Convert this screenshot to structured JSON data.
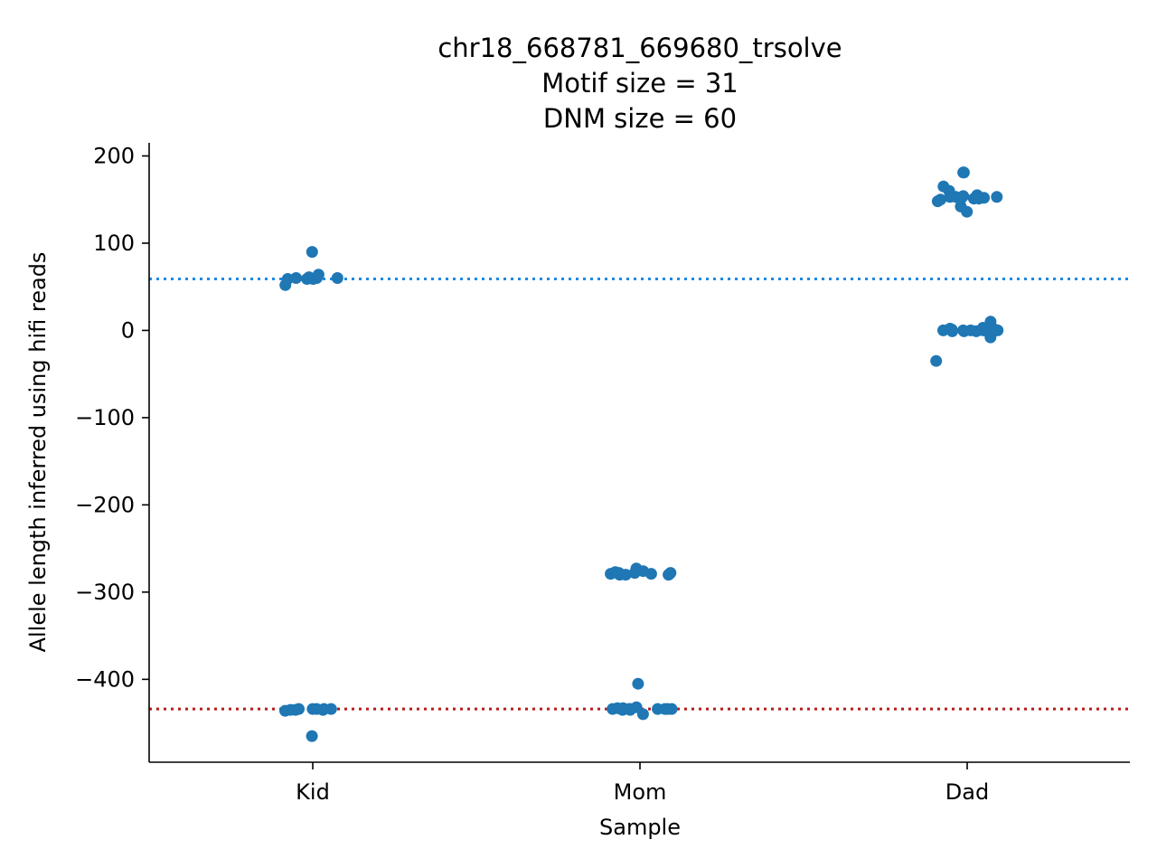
{
  "chart_data": {
    "type": "scatter",
    "title_lines": [
      "chr18_668781_669680_trsolve",
      "Motif size = 31",
      "DNM size = 60"
    ],
    "xlabel": "Sample",
    "ylabel": "Allele length inferred using hifi reads",
    "categories": [
      "Kid",
      "Mom",
      "Dad"
    ],
    "ylim": [
      -495,
      215
    ],
    "yticks": [
      200,
      100,
      0,
      -100,
      -200,
      -300,
      -400
    ],
    "ytick_labels": [
      "200",
      "100",
      "0",
      "−100",
      "−200",
      "−300",
      "−400"
    ],
    "point_color": "#1f77b4",
    "reference_lines": [
      {
        "value": 59,
        "color": "#1e88e5",
        "style": "dotted"
      },
      {
        "value": -434,
        "color": "#b71c1c",
        "style": "dotted"
      }
    ],
    "series": [
      {
        "category": "Kid",
        "values": [
          90,
          60,
          59,
          60,
          61,
          59,
          52,
          60,
          64,
          59,
          -434,
          -434,
          -435,
          -436,
          -434,
          -435,
          -434,
          -435,
          -434,
          -465
        ]
      },
      {
        "category": "Mom",
        "values": [
          -278,
          -279,
          -280,
          -278,
          -277,
          -273,
          -279,
          -280,
          -278,
          -276,
          -279,
          -280,
          -279,
          -434,
          -432,
          -435,
          -440,
          -434,
          -433,
          -434,
          -434,
          -435,
          -434,
          -434,
          -433,
          -434,
          -405
        ]
      },
      {
        "category": "Dad",
        "values": [
          153,
          151,
          142,
          152,
          155,
          165,
          160,
          181,
          150,
          148,
          152,
          151,
          152,
          153,
          153,
          181,
          136,
          154,
          0,
          -1,
          0,
          1,
          2,
          3,
          0,
          -1,
          1,
          -8,
          0,
          1,
          10,
          0,
          -1,
          0,
          -35
        ]
      }
    ]
  }
}
